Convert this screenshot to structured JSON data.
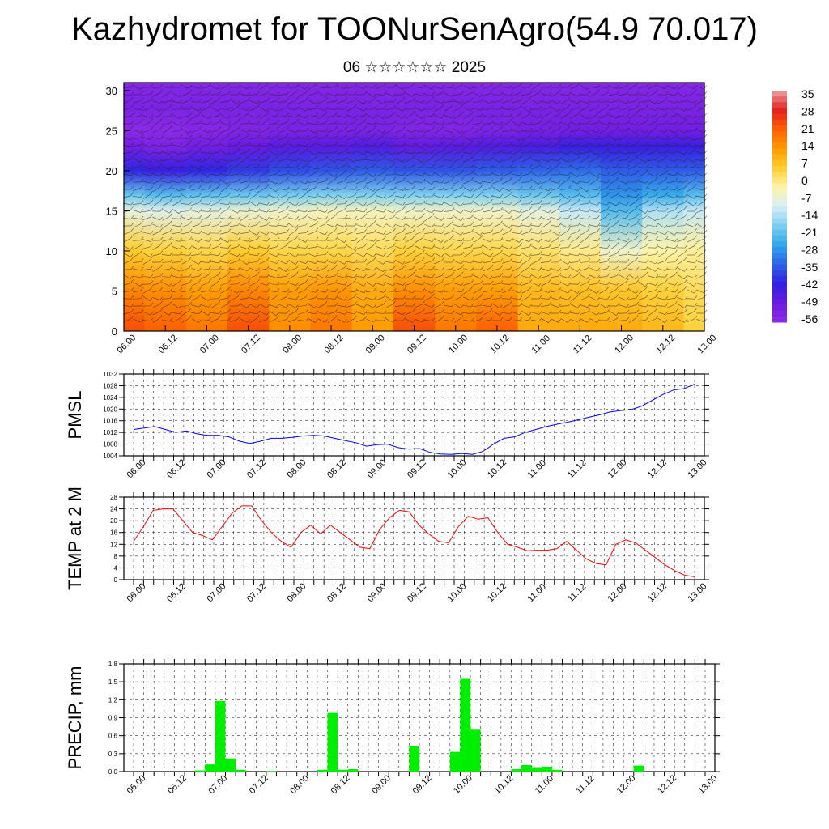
{
  "title": "Kazhydromet for TOONurSenAgro(54.9 70.017)",
  "subtitle": "06 ☆☆☆☆☆☆ 2025",
  "chart_data": [
    {
      "type": "heatmap",
      "xticks": [
        "06.00",
        "06.12",
        "07.00",
        "07.12",
        "08.00",
        "08.12",
        "09.00",
        "09.12",
        "10.00",
        "10.12",
        "11.00",
        "11.12",
        "12.00",
        "12.12",
        "13.00"
      ],
      "yticks": [
        "0",
        "5",
        "10",
        "15",
        "20",
        "25",
        "30"
      ],
      "ylim": [
        0,
        31
      ],
      "colorbar": {
        "labels": [
          "35",
          "28",
          "21",
          "14",
          "7",
          "0",
          "-7",
          "-14",
          "-21",
          "-28",
          "-35",
          "-42",
          "-49",
          "-56"
        ],
        "colors": [
          "#f0a0a0",
          "#e02020",
          "#ff6000",
          "#ff9a00",
          "#ffce30",
          "#fff4a8",
          "#d8eef8",
          "#7ccff0",
          "#2fa8ea",
          "#2f63e8",
          "#3020e0",
          "#6a1ae0",
          "#8e2ce8"
        ],
        "range": [
          -56,
          35
        ]
      },
      "temperature_profile": {
        "heights": [
          0,
          5,
          10,
          15,
          17,
          20,
          23,
          25,
          28,
          31
        ],
        "time_columns": [
          "06.00",
          "06.12",
          "07.00",
          "07.12",
          "08.00",
          "08.12",
          "09.00",
          "09.12",
          "10.00",
          "10.12",
          "11.00",
          "11.12",
          "12.00",
          "12.12",
          "13.00"
        ],
        "values": [
          [
            22,
            15,
            5,
            -8,
            -20,
            -40,
            -50,
            -55,
            -52,
            -54
          ],
          [
            20,
            14,
            4,
            -9,
            -22,
            -42,
            -52,
            -55,
            -52,
            -54
          ],
          [
            17,
            12,
            3,
            -8,
            -21,
            -40,
            -50,
            -54,
            -52,
            -54
          ],
          [
            22,
            15,
            5,
            -7,
            -20,
            -38,
            -48,
            -53,
            -52,
            -54
          ],
          [
            14,
            12,
            3,
            -6,
            -19,
            -36,
            -46,
            -52,
            -52,
            -54
          ],
          [
            17,
            13,
            3,
            -5,
            -18,
            -35,
            -46,
            -52,
            -52,
            -54
          ],
          [
            12,
            10,
            2,
            -5,
            -18,
            -34,
            -45,
            -52,
            -52,
            -54
          ],
          [
            22,
            14,
            4,
            -6,
            -18,
            -35,
            -47,
            -53,
            -52,
            -54
          ],
          [
            17,
            12,
            3,
            -6,
            -18,
            -35,
            -46,
            -53,
            -52,
            -54
          ],
          [
            20,
            12,
            3,
            -6,
            -18,
            -34,
            -45,
            -52,
            -52,
            -54
          ],
          [
            10,
            8,
            1,
            -8,
            -20,
            -33,
            -44,
            -51,
            -52,
            -54
          ],
          [
            10,
            7,
            -1,
            -12,
            -22,
            -32,
            -42,
            -50,
            -52,
            -54
          ],
          [
            10,
            6,
            -6,
            -22,
            -28,
            -34,
            -42,
            -50,
            -52,
            -54
          ],
          [
            8,
            4,
            -3,
            -14,
            -25,
            -34,
            -42,
            -50,
            -52,
            -54
          ],
          [
            4,
            2,
            -2,
            -12,
            -22,
            -34,
            -42,
            -50,
            -52,
            -54
          ]
        ]
      }
    },
    {
      "type": "line",
      "ylabel": "PMSL",
      "ylim": [
        1004,
        1032
      ],
      "yticks": [
        "1004",
        "1008",
        "1012",
        "1016",
        "1020",
        "1024",
        "1028",
        "1032"
      ],
      "xticks": [
        "06.00",
        "06.12",
        "07.00",
        "07.12",
        "08.00",
        "08.12",
        "09.00",
        "09.12",
        "10.00",
        "10.12",
        "11.00",
        "11.12",
        "12.00",
        "12.12",
        "13.00"
      ],
      "series": [
        {
          "color": "#0000ff",
          "values": [
            1013,
            1013.5,
            1014,
            1013,
            1012,
            1012.5,
            1011.5,
            1011,
            1011,
            1010.5,
            1009,
            1008.2,
            1009,
            1010,
            1010,
            1010.3,
            1010.8,
            1011,
            1010.8,
            1010,
            1009.2,
            1008.5,
            1007.3,
            1007.8,
            1008,
            1006.8,
            1006.3,
            1006.5,
            1005.2,
            1004.6,
            1004.5,
            1004.8,
            1004.5,
            1005.5,
            1008,
            1010,
            1010.5,
            1012,
            1013,
            1014,
            1014.8,
            1015.5,
            1016.3,
            1017.2,
            1018,
            1019,
            1019.5,
            1019.8,
            1021,
            1023,
            1025,
            1026.5,
            1027,
            1028.5
          ]
        }
      ]
    },
    {
      "type": "line",
      "ylabel": "TEMP at 2 M",
      "ylim": [
        0,
        28
      ],
      "yticks": [
        "0",
        "4",
        "8",
        "12",
        "16",
        "20",
        "24",
        "28"
      ],
      "xticks": [
        "06.00",
        "06.12",
        "07.00",
        "07.12",
        "08.00",
        "08.12",
        "09.00",
        "09.12",
        "10.00",
        "10.12",
        "11.00",
        "11.12",
        "12.00",
        "12.12",
        "13.00"
      ],
      "series": [
        {
          "color": "#ff0000",
          "values": [
            13,
            18,
            23.5,
            24,
            24,
            20,
            16,
            15,
            13.5,
            18,
            22.5,
            25,
            25,
            20,
            16,
            13,
            11,
            16,
            18.5,
            15.5,
            18.5,
            16,
            13.5,
            11,
            10.5,
            17,
            21,
            23.5,
            23,
            18.5,
            15.5,
            13,
            12.5,
            18,
            21.5,
            20.5,
            21,
            16,
            12,
            11,
            9.8,
            10,
            10,
            10.5,
            13,
            10,
            7,
            5.5,
            5,
            12,
            13.5,
            12.5,
            10,
            7.5,
            5,
            3,
            1.5,
            1
          ]
        }
      ]
    },
    {
      "type": "bar",
      "ylabel": "PRECIP, mm",
      "ylim": [
        0,
        1.8
      ],
      "yticks": [
        "0.0",
        "0.3",
        "0.6",
        "0.9",
        "1.2",
        "1.5",
        "1.8"
      ],
      "xticks": [
        "06.00",
        "06.12",
        "07.00",
        "07.12",
        "08.00",
        "08.12",
        "09.00",
        "09.12",
        "10.00",
        "10.12",
        "11.00",
        "11.12",
        "12.00",
        "12.12",
        "13.00"
      ],
      "bar_color": "#00ee00",
      "values": [
        0,
        0,
        0,
        0,
        0,
        0,
        0.02,
        0.12,
        1.18,
        0.22,
        0.03,
        0,
        0,
        0.01,
        0,
        0,
        0,
        0,
        0.03,
        0.98,
        0.03,
        0.04,
        0,
        0,
        0,
        0,
        0,
        0.42,
        0,
        0,
        0,
        0.33,
        1.55,
        0.7,
        0,
        0,
        0,
        0.04,
        0.11,
        0.06,
        0.08,
        0.03,
        0,
        0,
        0,
        0,
        0,
        0,
        0,
        0.1,
        0,
        0,
        0,
        0,
        0,
        0,
        0
      ]
    }
  ]
}
